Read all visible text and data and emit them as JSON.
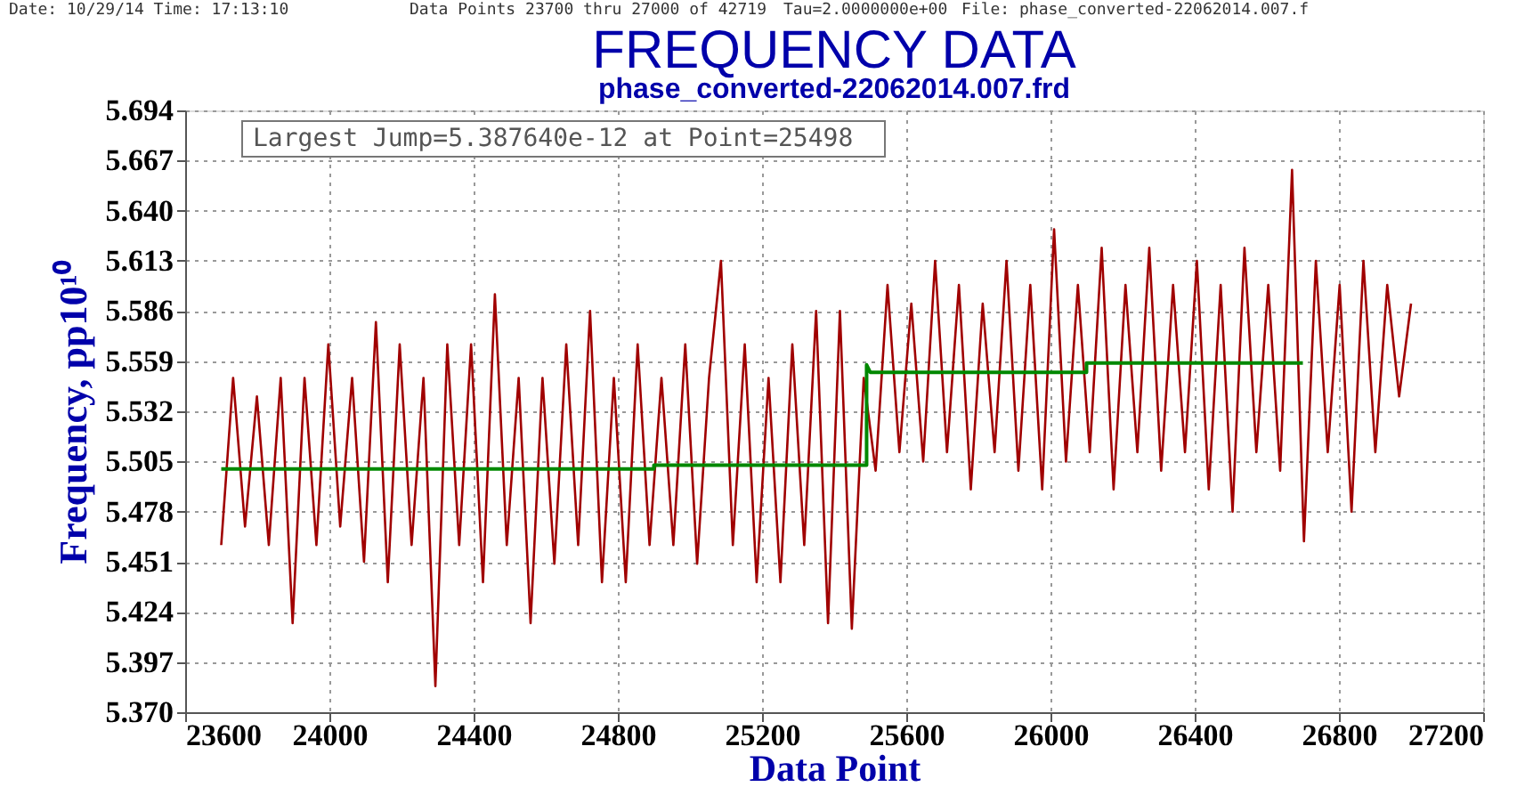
{
  "chart_data": {
    "type": "line",
    "title": "FREQUENCY DATA",
    "subtitle": "phase_converted-22062014.007.frd",
    "xlabel": "Data Point",
    "ylabel": "Frequency, pp10¹⁰",
    "annotations": [
      "Date: 10/29/14  Time: 17:13:10",
      "Data Points 23700 thru 27000 of 42719",
      "Tau=2.0000000e+00",
      "File: phase_converted-22062014.007.f",
      "Largest Jump=5.387640e-12 at Point=25498"
    ],
    "series": [
      {
        "color": "#a00000",
        "x": [
          23700,
          23733,
          23766,
          23799,
          23832,
          23865,
          23898,
          23931,
          23964,
          23997,
          24030,
          24063,
          24096,
          24129,
          24162,
          24195,
          24228,
          24261,
          24294,
          24327,
          24360,
          24393,
          24426,
          24459,
          24492,
          24525,
          24558,
          24591,
          24624,
          24657,
          24690,
          24723,
          24756,
          24789,
          24822,
          24855,
          24888,
          24921,
          24954,
          24987,
          25020,
          25053,
          25086,
          25119,
          25152,
          25185,
          25218,
          25251,
          25284,
          25317,
          25350,
          25383,
          25416,
          25449,
          25482,
          25515,
          25548,
          25581,
          25614,
          25647,
          25680,
          25713,
          25746,
          25779,
          25812,
          25845,
          25878,
          25911,
          25944,
          25977,
          26010,
          26043,
          26076,
          26109,
          26142,
          26175,
          26208,
          26241,
          26274,
          26307,
          26340,
          26373,
          26406,
          26439,
          26472,
          26505,
          26538,
          26571,
          26604,
          26637,
          26670,
          26703,
          26736,
          26769,
          26802,
          26835,
          26868,
          26901,
          26934,
          26967,
          27000
        ],
        "values": [
          5.46,
          5.55,
          5.47,
          5.54,
          5.46,
          5.55,
          5.418,
          5.55,
          5.46,
          5.568,
          5.47,
          5.55,
          5.451,
          5.58,
          5.44,
          5.568,
          5.46,
          5.55,
          5.384,
          5.568,
          5.46,
          5.568,
          5.44,
          5.595,
          5.46,
          5.55,
          5.418,
          5.55,
          5.45,
          5.568,
          5.46,
          5.586,
          5.44,
          5.55,
          5.44,
          5.568,
          5.46,
          5.55,
          5.46,
          5.568,
          5.45,
          5.55,
          5.613,
          5.46,
          5.568,
          5.44,
          5.55,
          5.44,
          5.568,
          5.46,
          5.586,
          5.418,
          5.586,
          5.415,
          5.55,
          5.5,
          5.6,
          5.51,
          5.59,
          5.505,
          5.613,
          5.51,
          5.6,
          5.49,
          5.59,
          5.51,
          5.613,
          5.5,
          5.6,
          5.49,
          5.63,
          5.505,
          5.6,
          5.51,
          5.62,
          5.49,
          5.6,
          5.51,
          5.62,
          5.5,
          5.6,
          5.51,
          5.613,
          5.49,
          5.6,
          5.478,
          5.62,
          5.51,
          5.6,
          5.5,
          5.662,
          5.462,
          5.613,
          5.51,
          5.6,
          5.478,
          5.613,
          5.51,
          5.6,
          5.54,
          5.59
        ]
      },
      {
        "color": "#008800",
        "x": [
          23700,
          24900,
          24900,
          25490,
          25490,
          25500,
          26100,
          26100,
          26700
        ],
        "values": [
          5.501,
          5.501,
          5.503,
          5.503,
          5.557,
          5.553,
          5.553,
          5.558,
          5.558
        ]
      }
    ],
    "xlim": [
      23600,
      27200
    ],
    "xticks": [
      23600,
      24000,
      24400,
      24800,
      25200,
      25600,
      26000,
      26400,
      26800,
      27200
    ],
    "ylim": [
      5.37,
      5.694
    ],
    "yticks": [
      {
        "value": 5.37,
        "label": "5.370"
      },
      5.397,
      5.424,
      5.451,
      5.478,
      5.505,
      5.532,
      5.559,
      5.586,
      5.613,
      {
        "value": 5.64,
        "label": "5.640"
      },
      5.667,
      5.694
    ],
    "grid": true,
    "marker": "none",
    "line_style": "solid"
  }
}
